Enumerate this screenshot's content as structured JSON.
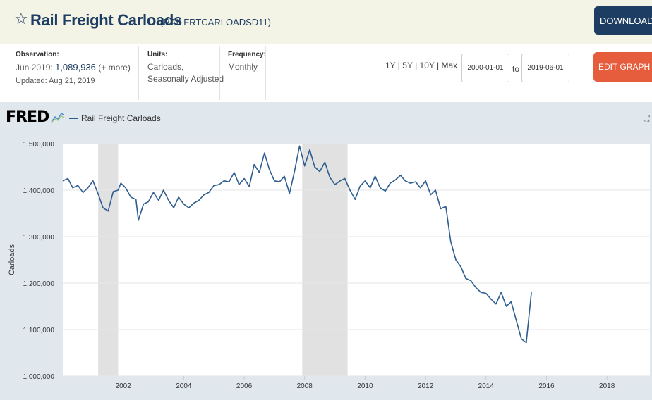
{
  "header": {
    "title": "Rail Freight Carloads",
    "series_id": "(RAILFRTCARLOADSD11)",
    "download_label": "DOWNLOAD",
    "edit_graph_label": "EDIT GRAPH"
  },
  "meta": {
    "observation_label": "Observation:",
    "observation_date": "Jun 2019:",
    "observation_value": "1,089,936",
    "observation_more": "(+ more)",
    "updated": "Updated: Aug 21, 2019",
    "units_label": "Units:",
    "units_line1": "Carloads,",
    "units_line2": "Seasonally Adjusted",
    "frequency_label": "Frequency:",
    "frequency_value": "Monthly"
  },
  "range": {
    "links": [
      "1Y",
      "5Y",
      "10Y",
      "Max"
    ],
    "from": "2000-01-01",
    "to_label": "to",
    "to": "2019-06-01"
  },
  "graph": {
    "logo": "FRED",
    "legend_label": "Rail Freight Carloads",
    "fullscreen_icon": "expand-icon"
  },
  "colors": {
    "brand_navy": "#1d3d63",
    "edit_orange": "#e55d3c",
    "series_line": "#2e5d90",
    "recession": "#e1e1e1"
  },
  "chart_data": {
    "type": "line",
    "title": "Rail Freight Carloads",
    "ylabel": "Carloads",
    "xlabel": "",
    "ylim": [
      1000000,
      1500000
    ],
    "xlim": [
      2000.0,
      2019.42
    ],
    "yticks": [
      1000000,
      1100000,
      1200000,
      1300000,
      1400000,
      1500000
    ],
    "ytick_labels": [
      "1,000,000",
      "1,100,000",
      "1,200,000",
      "1,300,000",
      "1,400,000",
      "1,500,000"
    ],
    "xticks": [
      2002,
      2004,
      2006,
      2008,
      2010,
      2012,
      2014,
      2016,
      2018
    ],
    "xtick_labels": [
      "2002",
      "2004",
      "2006",
      "2008",
      "2010",
      "2012",
      "2014",
      "2016",
      "2018"
    ],
    "recessions": [
      [
        2001.17,
        2001.83
      ],
      [
        2007.92,
        2009.42
      ]
    ],
    "series": [
      {
        "name": "Rail Freight Carloads",
        "points": [
          [
            2000.0,
            1420000
          ],
          [
            2000.17,
            1425000
          ],
          [
            2000.33,
            1405000
          ],
          [
            2000.5,
            1410000
          ],
          [
            2000.67,
            1395000
          ],
          [
            2000.83,
            1405000
          ],
          [
            2001.0,
            1420000
          ],
          [
            2001.17,
            1392000
          ],
          [
            2001.33,
            1362000
          ],
          [
            2001.5,
            1355000
          ],
          [
            2001.67,
            1397000
          ],
          [
            2001.83,
            1400000
          ],
          [
            2001.92,
            1415000
          ],
          [
            2002.08,
            1405000
          ],
          [
            2002.25,
            1385000
          ],
          [
            2002.42,
            1380000
          ],
          [
            2002.5,
            1335000
          ],
          [
            2002.67,
            1370000
          ],
          [
            2002.83,
            1375000
          ],
          [
            2003.0,
            1395000
          ],
          [
            2003.17,
            1378000
          ],
          [
            2003.33,
            1400000
          ],
          [
            2003.5,
            1378000
          ],
          [
            2003.67,
            1362000
          ],
          [
            2003.83,
            1385000
          ],
          [
            2004.0,
            1370000
          ],
          [
            2004.17,
            1362000
          ],
          [
            2004.33,
            1372000
          ],
          [
            2004.5,
            1378000
          ],
          [
            2004.67,
            1390000
          ],
          [
            2004.83,
            1395000
          ],
          [
            2005.0,
            1410000
          ],
          [
            2005.17,
            1412000
          ],
          [
            2005.33,
            1420000
          ],
          [
            2005.5,
            1418000
          ],
          [
            2005.67,
            1438000
          ],
          [
            2005.83,
            1412000
          ],
          [
            2006.0,
            1425000
          ],
          [
            2006.17,
            1408000
          ],
          [
            2006.33,
            1455000
          ],
          [
            2006.5,
            1438000
          ],
          [
            2006.67,
            1480000
          ],
          [
            2006.83,
            1445000
          ],
          [
            2007.0,
            1420000
          ],
          [
            2007.17,
            1418000
          ],
          [
            2007.33,
            1430000
          ],
          [
            2007.5,
            1393000
          ],
          [
            2007.67,
            1442000
          ],
          [
            2007.83,
            1495000
          ],
          [
            2008.0,
            1452000
          ],
          [
            2008.17,
            1487000
          ],
          [
            2008.33,
            1450000
          ],
          [
            2008.5,
            1440000
          ],
          [
            2008.67,
            1460000
          ],
          [
            2008.83,
            1428000
          ],
          [
            2009.0,
            1412000
          ],
          [
            2009.17,
            1420000
          ],
          [
            2009.33,
            1425000
          ],
          [
            2009.5,
            1400000
          ],
          [
            2009.67,
            1380000
          ],
          [
            2009.83,
            1408000
          ],
          [
            2010.0,
            1420000
          ],
          [
            2010.17,
            1405000
          ],
          [
            2010.33,
            1430000
          ],
          [
            2010.5,
            1405000
          ],
          [
            2010.67,
            1398000
          ],
          [
            2010.83,
            1415000
          ],
          [
            2011.0,
            1422000
          ],
          [
            2011.17,
            1432000
          ],
          [
            2011.33,
            1420000
          ],
          [
            2011.5,
            1415000
          ],
          [
            2011.67,
            1418000
          ],
          [
            2011.83,
            1405000
          ],
          [
            2012.0,
            1420000
          ],
          [
            2012.17,
            1390000
          ],
          [
            2012.33,
            1400000
          ],
          [
            2012.5,
            1360000
          ],
          [
            2012.67,
            1365000
          ],
          [
            2012.83,
            1290000
          ],
          [
            2013.0,
            1250000
          ],
          [
            2013.17,
            1235000
          ],
          [
            2013.33,
            1210000
          ],
          [
            2013.5,
            1205000
          ],
          [
            2013.67,
            1190000
          ],
          [
            2013.83,
            1180000
          ],
          [
            2014.0,
            1178000
          ],
          [
            2014.17,
            1165000
          ],
          [
            2014.33,
            1155000
          ],
          [
            2014.5,
            1180000
          ],
          [
            2014.67,
            1150000
          ],
          [
            2014.83,
            1160000
          ],
          [
            2015.0,
            1120000
          ],
          [
            2015.17,
            1080000
          ],
          [
            2015.33,
            1072000
          ],
          [
            2015.5,
            1180000
          ]
        ]
      }
    ]
  }
}
